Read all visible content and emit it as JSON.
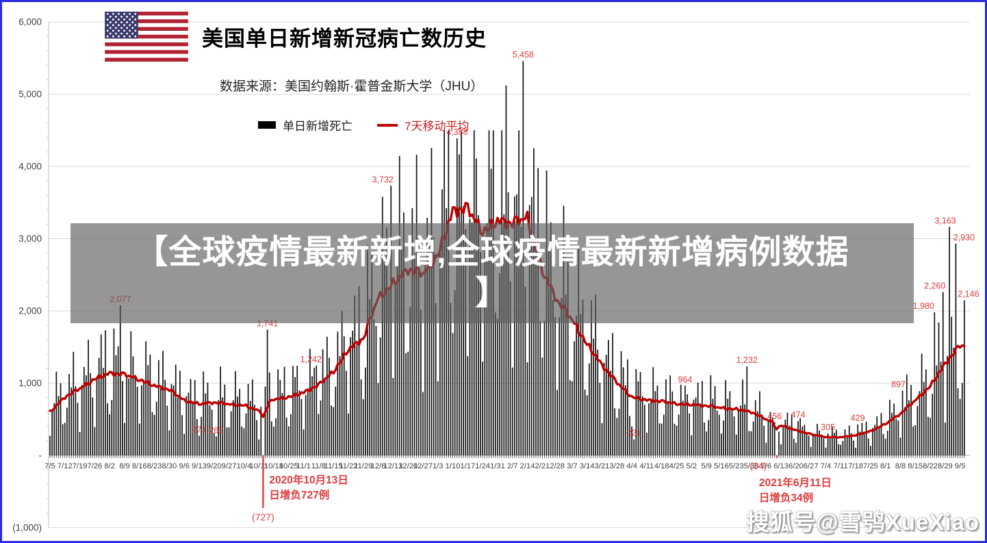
{
  "page": {
    "border_color": "#2a2ae2",
    "background": "#ffffff"
  },
  "header": {
    "flag_icon": "us-flag",
    "title": "美国单日新增新冠病亡数历史",
    "source": "数据来源：美国约翰斯·霍普金斯大学（JHU）"
  },
  "legend": {
    "bar_label": "单日新增死亡",
    "line_label": "7天移动平均",
    "bar_color": "#000000",
    "line_color": "#c00000"
  },
  "overlay_watermark": {
    "line1": "【全球疫情最新新增,全球疫情最新新增病例数据",
    "line2": "】",
    "background": "rgba(95,95,95,0.66)",
    "text_color": "#ffffff"
  },
  "footer": {
    "watermark": "搜狐号@雪鸮XueXiao"
  },
  "chart_data": {
    "type": "bar",
    "title": "美国单日新增新冠病亡数历史",
    "source": "数据来源：美国约翰斯·霍普金斯大学（JHU）",
    "ylim": [
      -1000,
      6000
    ],
    "grid": true,
    "legend_position": "top-center",
    "y_axis": {
      "tick_labels": [
        "6,000",
        "5,000",
        "4,000",
        "3,000",
        "2,000",
        "1,000",
        "-",
        "(1,000)"
      ],
      "tick_values": [
        6000,
        5000,
        4000,
        3000,
        2000,
        1000,
        0,
        -1000
      ],
      "minor_tick_step": 200
    },
    "x_axis": {
      "start_date": "2020-07-05",
      "end_date": "2021-09-07",
      "week_labels": [
        "7/5",
        "7/12",
        "7/19",
        "7/26",
        "8/2",
        "8/9",
        "8/16",
        "8/23",
        "8/30",
        "9/6",
        "9/13",
        "9/20",
        "9/27",
        "10/4",
        "10/11",
        "10/18",
        "10/25",
        "11/1",
        "11/8",
        "11/15",
        "11/22",
        "11/29",
        "12/6",
        "12/13",
        "12/20",
        "12/27",
        "1/3",
        "1/10",
        "1/17",
        "1/24",
        "1/31",
        "2/7",
        "2/14",
        "2/21",
        "2/28",
        "3/7",
        "3/14",
        "3/21",
        "3/28",
        "4/4",
        "4/11",
        "4/18",
        "4/25",
        "5/2",
        "5/9",
        "5/16",
        "5/23",
        "5/30",
        "6/6",
        "6/13",
        "6/20",
        "6/27",
        "7/4",
        "7/11",
        "7/18",
        "7/25",
        "8/1",
        "8/8",
        "8/15",
        "8/22",
        "8/29",
        "9/5"
      ]
    },
    "series": [
      {
        "name": "单日新增死亡",
        "type": "bar",
        "color": "#111111",
        "weekday_factors": [
          0.45,
          0.85,
          1.25,
          1.3,
          1.25,
          1.2,
          0.7
        ],
        "noise": [
          1.0,
          1.18,
          0.88,
          1.3,
          0.92,
          1.12,
          0.8,
          1.25,
          0.95,
          1.08,
          0.85,
          1.32,
          0.9,
          1.15,
          0.78,
          1.22,
          1.02,
          0.87,
          1.28,
          0.93,
          1.1,
          0.82,
          1.2
        ],
        "cap": 4500
      },
      {
        "name": "7天移动平均",
        "type": "line",
        "color": "#c00000",
        "weekly_values": [
          600,
          800,
          920,
          1060,
          1130,
          1110,
          1050,
          960,
          900,
          760,
          710,
          725,
          705,
          695,
          610,
          770,
          810,
          865,
          965,
          1160,
          1460,
          1600,
          2180,
          2380,
          2550,
          2500,
          2780,
          3360,
          3390,
          3100,
          3230,
          3180,
          3290,
          2550,
          2120,
          1870,
          1540,
          1240,
          1000,
          810,
          760,
          740,
          715,
          700,
          680,
          655,
          640,
          595,
          495,
          415,
          345,
          290,
          255,
          250,
          275,
          335,
          435,
          570,
          760,
          960,
          1260,
          1510
        ],
        "dips": {
          "99": 0.93,
          "100": 0.8,
          "101": 0.88,
          "102": 0.95,
          "340": 0.9,
          "341": 0.84,
          "342": 0.93
        }
      }
    ],
    "labeled_points": [
      {
        "day": 33,
        "value": 2077,
        "label": "2,077"
      },
      {
        "day": 70,
        "value": 271,
        "label": "271"
      },
      {
        "day": 78,
        "value": 262,
        "label": "262"
      },
      {
        "day": 102,
        "value": 1741,
        "label": "1,741"
      },
      {
        "day": 125,
        "value": 1242,
        "label": "1,242",
        "dx": -8
      },
      {
        "day": 160,
        "value": 3732,
        "label": "3,732",
        "dx": -12
      },
      {
        "day": 191,
        "value": 4388,
        "label": "4,388"
      },
      {
        "day": 214,
        "value": 5120,
        "label": ""
      },
      {
        "day": 222,
        "value": 5458,
        "label": "5,458"
      },
      {
        "day": 274,
        "value": 221,
        "label": "221"
      },
      {
        "day": 298,
        "value": 964,
        "label": "964"
      },
      {
        "day": 327,
        "value": 1232,
        "label": "1,232"
      },
      {
        "day": 340,
        "value": 456,
        "label": "456"
      },
      {
        "day": 351,
        "value": 474,
        "label": "474"
      },
      {
        "day": 365,
        "value": 305,
        "label": "305"
      },
      {
        "day": 379,
        "value": 429,
        "label": "429"
      },
      {
        "day": 400,
        "value": 897,
        "label": "897",
        "dx": -6
      },
      {
        "day": 415,
        "value": 1980,
        "label": "1,980",
        "dx": -16
      },
      {
        "day": 419,
        "value": 2260,
        "label": "2,260",
        "dx": -12
      },
      {
        "day": 422,
        "value": 3163,
        "label": "3,163",
        "dx": -6
      },
      {
        "day": 425,
        "value": 2930,
        "label": "2,930",
        "dx": 12
      },
      {
        "day": 429,
        "value": 2146,
        "label": "2,146",
        "dx": 6
      }
    ],
    "negative_days": [
      {
        "day": 100,
        "value": -727
      },
      {
        "day": 341,
        "value": -34
      }
    ],
    "annotations": [
      {
        "anchor_day": 100,
        "date_line": "2020年10月13日",
        "text_line": "日增负727例",
        "value_label": "(727)",
        "has_drop_line": true
      },
      {
        "anchor_day": 341,
        "date_line": "2021年6月11日",
        "text_line": "日增负34例",
        "value_label": "(34)",
        "has_drop_line": false
      }
    ],
    "annotation_color": "#e03c3c",
    "label_color": "#e03c3c"
  }
}
